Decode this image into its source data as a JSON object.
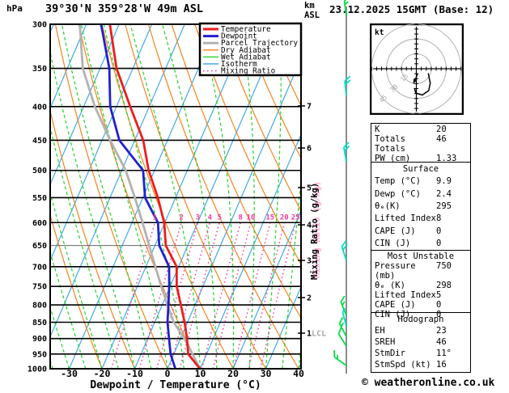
{
  "header": {
    "pressure_unit": "hPa",
    "title": "39°30'N 359°28'W 49m ASL",
    "km_label": "km",
    "asl_label": "ASL",
    "datetime": "23.12.2025 15GMT (Base: 12)"
  },
  "legend": {
    "items": [
      {
        "label": "Temperature",
        "color": "#ee1c1c",
        "width": 3,
        "dash": ""
      },
      {
        "label": "Dewpoint",
        "color": "#2020d0",
        "width": 3,
        "dash": ""
      },
      {
        "label": "Parcel Trajectory",
        "color": "#b2b2b2",
        "width": 3,
        "dash": ""
      },
      {
        "label": "Dry Adiabat",
        "color": "#f5831d",
        "width": 1.4,
        "dash": ""
      },
      {
        "label": "Wet Adiabat",
        "color": "#22d42a",
        "width": 1.4,
        "dash": ""
      },
      {
        "label": "Isotherm",
        "color": "#41aae6",
        "width": 1.4,
        "dash": ""
      },
      {
        "label": "Mixing Ratio",
        "color": "#f9379f",
        "width": 1.6,
        "dash": "1.5 3.5"
      }
    ]
  },
  "chart_data": {
    "type": "skewt_sounding",
    "title": "39°30'N 359°28'W 49m ASL",
    "valid": "23.12.2025 15GMT (Base: 12)",
    "pressure_axis": {
      "unit": "hPa",
      "top": 300,
      "bottom": 1000,
      "levels": [
        300,
        350,
        400,
        450,
        500,
        550,
        600,
        650,
        700,
        750,
        800,
        850,
        900,
        950,
        1000
      ],
      "scale": "log"
    },
    "temp_axis": {
      "unit": "°C",
      "ticks": [
        -30,
        -20,
        -10,
        0,
        10,
        20,
        30,
        40
      ],
      "label": "Dewpoint / Temperature (°C)",
      "skewed": true
    },
    "km_axis": {
      "header": [
        "km",
        "ASL"
      ],
      "ticks": [
        {
          "km": 7
        },
        {
          "km": 6
        },
        {
          "km": 5
        },
        {
          "km": 4
        },
        {
          "km": 3
        },
        {
          "km": 2
        },
        {
          "km": 1,
          "note": "LCL"
        }
      ]
    },
    "mixing_ratio": {
      "label": "Mixing Ratio (g/kg)",
      "values": [
        1,
        2,
        3,
        4,
        5,
        8,
        10,
        15,
        20,
        25
      ],
      "label_pressure": 600,
      "line_color": "#f9379f"
    },
    "grid": {
      "isotherms_every_c": 10,
      "dry_adiabats_every_c": 10,
      "wet_adiabats_every_c": 5
    },
    "series": [
      {
        "name": "Temperature",
        "color": "#ee1c1c",
        "points_p_t": [
          [
            300,
            -62.8
          ],
          [
            350,
            -55.0
          ],
          [
            400,
            -45.8
          ],
          [
            450,
            -37.4
          ],
          [
            500,
            -31.8
          ],
          [
            550,
            -25.4
          ],
          [
            600,
            -20.2
          ],
          [
            650,
            -16.7
          ],
          [
            700,
            -10.6
          ],
          [
            750,
            -8.0
          ],
          [
            800,
            -4.3
          ],
          [
            850,
            -0.9
          ],
          [
            900,
            2.0
          ],
          [
            950,
            4.4
          ],
          [
            1000,
            9.9
          ]
        ]
      },
      {
        "name": "Dewpoint",
        "color": "#2020d0",
        "points_p_t": [
          [
            300,
            -65.5
          ],
          [
            350,
            -57.2
          ],
          [
            400,
            -51.9
          ],
          [
            450,
            -44.7
          ],
          [
            500,
            -33.5
          ],
          [
            550,
            -29.3
          ],
          [
            600,
            -22.1
          ],
          [
            650,
            -18.7
          ],
          [
            700,
            -12.9
          ],
          [
            750,
            -10.3
          ],
          [
            800,
            -8.1
          ],
          [
            850,
            -6.1
          ],
          [
            900,
            -3.5
          ],
          [
            950,
            -1.0
          ],
          [
            1000,
            2.4
          ]
        ]
      },
      {
        "name": "Parcel Trajectory",
        "color": "#b2b2b2",
        "points_p_t": [
          [
            300,
            -72.0
          ],
          [
            350,
            -65.3
          ],
          [
            400,
            -56.6
          ],
          [
            450,
            -47.5
          ],
          [
            500,
            -38.8
          ],
          [
            550,
            -32.4
          ],
          [
            600,
            -26.8
          ],
          [
            650,
            -21.8
          ],
          [
            700,
            -17.1
          ],
          [
            750,
            -12.7
          ],
          [
            800,
            -8.4
          ],
          [
            850,
            -4.2
          ],
          [
            900,
            1.2
          ],
          [
            950,
            5.7
          ],
          [
            1000,
            9.9
          ]
        ]
      }
    ]
  },
  "hodograph": {
    "unit_label": "kt",
    "rings_kt": [
      15,
      30,
      45
    ],
    "ring_label_color": "#aaaaaa",
    "trace_kt": [
      [
        12.0,
        -4.5
      ],
      [
        14.0,
        -14.5
      ],
      [
        12.5,
        -22.0
      ],
      [
        6.0,
        -26.5
      ],
      [
        -0.5,
        -24.5
      ],
      [
        -2.0,
        -19.5
      ]
    ],
    "storm_vector_kt": [
      [
        1.5,
        -5.0
      ],
      [
        -3.0,
        -15.0
      ]
    ]
  },
  "wind_barbs": [
    {
      "y": 19,
      "color": "#00dc46",
      "full": 1,
      "half": 1,
      "rot": -8
    },
    {
      "y": 118,
      "color": "#00dcc8",
      "full": 2,
      "half": 0,
      "rot": -6
    },
    {
      "y": 200,
      "color": "#00dcc8",
      "full": 2,
      "half": 0,
      "rot": -10
    },
    {
      "y": 322,
      "color": "#00dcc8",
      "full": 2,
      "half": 0,
      "rot": -18
    },
    {
      "y": 390,
      "color": "#00dc46",
      "full": 1,
      "half": 1,
      "rot": -22
    },
    {
      "y": 403,
      "color": "#00dcc8",
      "full": 0,
      "half": 1,
      "rot": -15
    },
    {
      "y": 416,
      "color": "#00dc46",
      "full": 1,
      "half": 1,
      "rot": -28
    },
    {
      "y": 428,
      "color": "#00dc46",
      "full": 1,
      "half": 0,
      "rot": -32
    },
    {
      "y": 452,
      "color": "#00dc46",
      "full": 1,
      "half": 1,
      "rot": -55
    }
  ],
  "stats": {
    "sections": [
      {
        "title": "",
        "rows": [
          [
            "K",
            "20"
          ],
          [
            "Totals Totals",
            "46"
          ],
          [
            "PW (cm)",
            "1.33"
          ]
        ]
      },
      {
        "title": "Surface",
        "rows": [
          [
            "Temp (°C)",
            "9.9"
          ],
          [
            "Dewp (°C)",
            "2.4"
          ],
          [
            "θₑ(K)",
            "295"
          ],
          [
            "Lifted Index",
            "8"
          ],
          [
            "CAPE (J)",
            "0"
          ],
          [
            "CIN (J)",
            "0"
          ]
        ]
      },
      {
        "title": "Most Unstable",
        "rows": [
          [
            "Pressure (mb)",
            "750"
          ],
          [
            "θₑ (K)",
            "298"
          ],
          [
            "Lifted Index",
            "5"
          ],
          [
            "CAPE (J)",
            "0"
          ],
          [
            "CIN (J)",
            "0"
          ]
        ]
      },
      {
        "title": "Hodograph",
        "rows": [
          [
            "EH",
            "23"
          ],
          [
            "SREH",
            "46"
          ],
          [
            "StmDir",
            "11°"
          ],
          [
            "StmSpd (kt)",
            "16"
          ]
        ]
      }
    ]
  },
  "footer": {
    "copyright": "© weatheronline.co.uk"
  },
  "colors": {
    "isotherm": "#41aae6",
    "dry_adiabat": "#f5831d",
    "wet_adiabat": "#22d42a",
    "mixing_ratio": "#f9379f",
    "mixing_ghost": "#ffaad4",
    "pressure_line": "#000000",
    "temperature": "#ee1c1c",
    "dewpoint": "#2020d0",
    "parcel": "#b2b2b2",
    "barb_staff": "#8c8c8c",
    "hodo_ring": "#b0b0b0"
  }
}
